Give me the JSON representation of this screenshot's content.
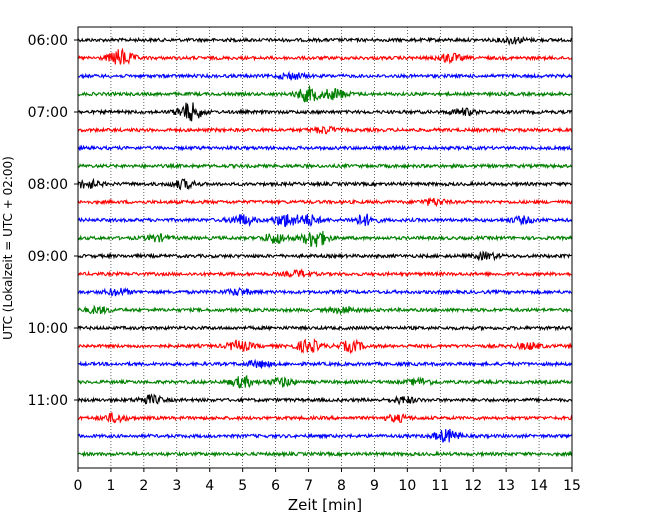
{
  "chart_data": {
    "type": "line",
    "xlabel": "Zeit  [min]",
    "ylabel": "UTC (Lokalzeit = UTC + 02:00)",
    "xlim": [
      0,
      15
    ],
    "x_ticks": [
      "0",
      "1",
      "2",
      "3",
      "4",
      "5",
      "6",
      "7",
      "8",
      "9",
      "10",
      "11",
      "12",
      "13",
      "14",
      "15"
    ],
    "grid": "vertical dotted at each minute",
    "row_interval_min": 15,
    "time_labels": [
      "06:00",
      "07:00",
      "08:00",
      "09:00",
      "10:00",
      "11:00"
    ],
    "color_cycle": [
      "#000000",
      "#ff0000",
      "#0000ff",
      "#008000"
    ],
    "traces": [
      {
        "start": "06:00",
        "color": "#000000",
        "events": [
          {
            "x": 13.2,
            "amp": 3
          }
        ]
      },
      {
        "start": "06:15",
        "color": "#ff0000",
        "events": [
          {
            "x": 1.3,
            "amp": 8
          },
          {
            "x": 11.3,
            "amp": 4
          }
        ]
      },
      {
        "start": "06:30",
        "color": "#0000ff",
        "events": [
          {
            "x": 6.5,
            "amp": 3
          }
        ]
      },
      {
        "start": "06:45",
        "color": "#008000",
        "events": [
          {
            "x": 7.0,
            "amp": 7
          },
          {
            "x": 7.8,
            "amp": 5
          }
        ]
      },
      {
        "start": "07:00",
        "color": "#000000",
        "events": [
          {
            "x": 3.4,
            "amp": 9
          },
          {
            "x": 11.7,
            "amp": 3
          }
        ]
      },
      {
        "start": "07:15",
        "color": "#ff0000",
        "events": [
          {
            "x": 7.5,
            "amp": 3
          }
        ]
      },
      {
        "start": "07:30",
        "color": "#0000ff",
        "events": []
      },
      {
        "start": "07:45",
        "color": "#008000",
        "events": []
      },
      {
        "start": "08:00",
        "color": "#000000",
        "events": [
          {
            "x": 0.3,
            "amp": 4
          },
          {
            "x": 3.2,
            "amp": 4
          }
        ]
      },
      {
        "start": "08:15",
        "color": "#ff0000",
        "events": [
          {
            "x": 10.8,
            "amp": 3
          }
        ]
      },
      {
        "start": "08:30",
        "color": "#0000ff",
        "events": [
          {
            "x": 5.0,
            "amp": 5
          },
          {
            "x": 6.3,
            "amp": 6
          },
          {
            "x": 7.0,
            "amp": 5
          },
          {
            "x": 8.7,
            "amp": 5
          },
          {
            "x": 13.5,
            "amp": 3
          }
        ]
      },
      {
        "start": "08:45",
        "color": "#008000",
        "events": [
          {
            "x": 2.4,
            "amp": 3
          },
          {
            "x": 6.0,
            "amp": 5
          },
          {
            "x": 7.2,
            "amp": 9
          }
        ]
      },
      {
        "start": "09:00",
        "color": "#000000",
        "events": [
          {
            "x": 12.4,
            "amp": 3
          }
        ]
      },
      {
        "start": "09:15",
        "color": "#ff0000",
        "events": [
          {
            "x": 6.7,
            "amp": 3
          }
        ]
      },
      {
        "start": "09:30",
        "color": "#0000ff",
        "events": [
          {
            "x": 1.2,
            "amp": 3
          },
          {
            "x": 4.9,
            "amp": 3
          }
        ]
      },
      {
        "start": "09:45",
        "color": "#008000",
        "events": [
          {
            "x": 0.6,
            "amp": 3
          },
          {
            "x": 8.1,
            "amp": 3
          }
        ]
      },
      {
        "start": "10:00",
        "color": "#000000",
        "events": []
      },
      {
        "start": "10:15",
        "color": "#ff0000",
        "events": [
          {
            "x": 4.9,
            "amp": 5
          },
          {
            "x": 7.0,
            "amp": 6
          },
          {
            "x": 8.3,
            "amp": 5
          },
          {
            "x": 13.7,
            "amp": 3
          }
        ]
      },
      {
        "start": "10:30",
        "color": "#0000ff",
        "events": [
          {
            "x": 5.5,
            "amp": 3
          }
        ]
      },
      {
        "start": "10:45",
        "color": "#008000",
        "events": [
          {
            "x": 5.0,
            "amp": 5
          },
          {
            "x": 6.2,
            "amp": 4
          },
          {
            "x": 10.4,
            "amp": 3
          }
        ]
      },
      {
        "start": "11:00",
        "color": "#000000",
        "events": [
          {
            "x": 2.2,
            "amp": 4
          },
          {
            "x": 9.9,
            "amp": 3
          }
        ]
      },
      {
        "start": "11:15",
        "color": "#ff0000",
        "events": [
          {
            "x": 1.1,
            "amp": 4
          },
          {
            "x": 9.7,
            "amp": 3
          }
        ]
      },
      {
        "start": "11:30",
        "color": "#0000ff",
        "events": [
          {
            "x": 11.2,
            "amp": 6
          }
        ]
      },
      {
        "start": "11:45",
        "color": "#008000",
        "events": []
      }
    ]
  }
}
